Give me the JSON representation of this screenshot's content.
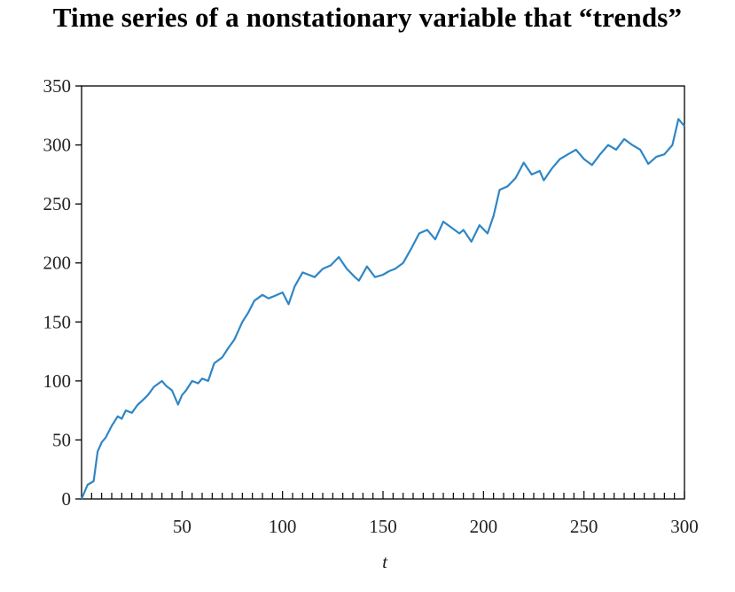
{
  "title": "Time series of a nonstationary variable that “trends”",
  "chart_data": {
    "type": "line",
    "title": "Time series of a nonstationary variable that “trends”",
    "xlabel": "t",
    "ylabel": "",
    "xlim": [
      0,
      300
    ],
    "ylim": [
      0,
      350
    ],
    "x_ticks": [
      50,
      100,
      150,
      200,
      250,
      300
    ],
    "x_tick_labels": [
      "50",
      "100",
      "150",
      "200",
      "250",
      "300"
    ],
    "y_ticks": [
      0,
      50,
      100,
      150,
      200,
      250,
      300,
      350
    ],
    "y_tick_labels": [
      "0",
      "50",
      "100",
      "150",
      "200",
      "250",
      "300",
      "350"
    ],
    "x_minor_step": 5,
    "grid": false,
    "line_color": "#2f86c6",
    "series": [
      {
        "x": [
          0,
          3,
          6,
          8,
          10,
          12,
          15,
          18,
          20,
          22,
          25,
          28,
          30,
          33,
          36,
          40,
          42,
          45,
          48,
          50,
          52,
          55,
          58,
          60,
          63,
          66,
          70,
          73,
          76,
          80,
          83,
          86,
          90,
          93,
          96,
          100,
          103,
          106,
          110,
          113,
          116,
          120,
          124,
          128,
          132,
          136,
          138,
          142,
          146,
          150,
          153,
          156,
          160,
          164,
          168,
          172,
          176,
          180,
          184,
          188,
          190,
          194,
          198,
          202,
          205,
          208,
          212,
          216,
          220,
          224,
          228,
          230,
          234,
          238,
          242,
          246,
          250,
          254,
          258,
          262,
          266,
          270,
          274,
          278,
          282,
          286,
          290,
          294,
          297,
          300
        ],
        "y": [
          0,
          12,
          15,
          40,
          48,
          52,
          62,
          70,
          68,
          75,
          73,
          80,
          83,
          88,
          95,
          100,
          96,
          92,
          80,
          88,
          92,
          100,
          98,
          102,
          100,
          115,
          120,
          128,
          135,
          150,
          158,
          168,
          173,
          170,
          172,
          175,
          165,
          180,
          192,
          190,
          188,
          195,
          198,
          205,
          195,
          188,
          185,
          197,
          188,
          190,
          193,
          195,
          200,
          212,
          225,
          228,
          220,
          235,
          230,
          225,
          228,
          218,
          232,
          225,
          240,
          262,
          265,
          272,
          285,
          275,
          278,
          270,
          280,
          288,
          292,
          296,
          288,
          283,
          292,
          300,
          296,
          305,
          300,
          296,
          284,
          290,
          292,
          300,
          322,
          316
        ]
      }
    ]
  }
}
